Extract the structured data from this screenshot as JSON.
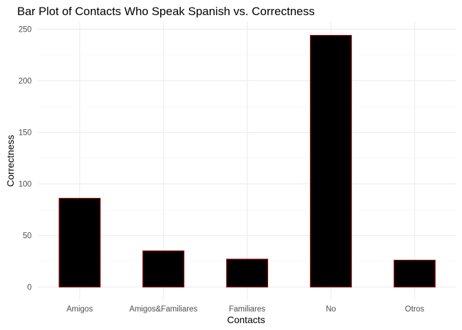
{
  "chart_data": {
    "type": "bar",
    "title": "Bar Plot of Contacts Who Speak Spanish vs. Correctness",
    "xlabel": "Contacts",
    "ylabel": "Correctness",
    "categories": [
      "Amigos",
      "Amigos&Familiares",
      "Familiares",
      "No",
      "Otros"
    ],
    "values": [
      86,
      35,
      27,
      244,
      26
    ],
    "ylim": [
      0,
      256
    ],
    "yticks": [
      0,
      50,
      100,
      150,
      200,
      250
    ],
    "grid": true,
    "legend": "none",
    "colors": {
      "bar_fill": "#000000",
      "bar_outline": "#8b0000",
      "grid": "#ebebeb",
      "tick_text": "#4d4d4d"
    }
  }
}
